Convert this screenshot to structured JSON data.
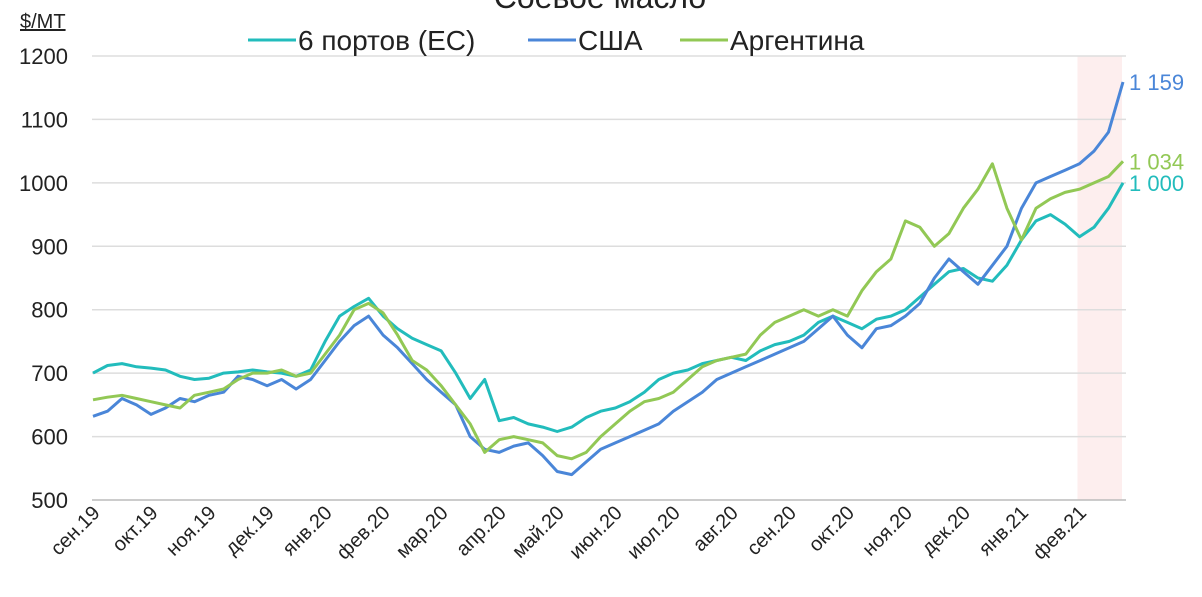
{
  "chart_data": {
    "type": "line",
    "title": "Соевое масло",
    "y_unit": "$/MT",
    "categories": [
      "сен.19",
      null,
      null,
      null,
      "окт.19",
      null,
      null,
      null,
      "ноя.19",
      null,
      null,
      null,
      "дек.19",
      null,
      null,
      null,
      "янв.20",
      null,
      null,
      null,
      "фев.20",
      null,
      null,
      null,
      "мар.20",
      null,
      null,
      null,
      "апр.20",
      null,
      null,
      null,
      "май.20",
      null,
      null,
      null,
      "июн.20",
      null,
      null,
      null,
      "июл.20",
      null,
      null,
      null,
      "авг.20",
      null,
      null,
      null,
      "сен.20",
      null,
      null,
      null,
      "окт.20",
      null,
      null,
      null,
      "ноя.20",
      null,
      null,
      null,
      "дек.20",
      null,
      null,
      null,
      "янв.21",
      null,
      null,
      null,
      "фев.21",
      null,
      null,
      null
    ],
    "series": [
      {
        "name": "6 портов (ЕС)",
        "color": "#22bcbc",
        "end_label": "1 000",
        "values": [
          700,
          712,
          715,
          710,
          708,
          705,
          695,
          690,
          692,
          700,
          702,
          705,
          702,
          700,
          695,
          705,
          750,
          790,
          805,
          818,
          790,
          770,
          755,
          745,
          735,
          700,
          660,
          690,
          625,
          630,
          620,
          615,
          608,
          615,
          630,
          640,
          645,
          655,
          670,
          690,
          700,
          705,
          715,
          720,
          725,
          720,
          735,
          745,
          750,
          760,
          780,
          790,
          780,
          770,
          785,
          790,
          800,
          820,
          840,
          860,
          865,
          850,
          845,
          870,
          910,
          940,
          950,
          935,
          915,
          930,
          960,
          1000
        ]
      },
      {
        "name": "США",
        "color": "#4a86d8",
        "end_label": "1 159",
        "values": [
          632,
          640,
          660,
          650,
          635,
          645,
          660,
          655,
          665,
          670,
          695,
          690,
          680,
          690,
          675,
          690,
          720,
          750,
          775,
          790,
          760,
          740,
          715,
          690,
          670,
          650,
          600,
          580,
          575,
          585,
          590,
          570,
          545,
          540,
          560,
          580,
          590,
          600,
          610,
          620,
          640,
          655,
          670,
          690,
          700,
          710,
          720,
          730,
          740,
          750,
          770,
          790,
          760,
          740,
          770,
          775,
          790,
          810,
          850,
          880,
          860,
          840,
          870,
          900,
          960,
          1000,
          1010,
          1020,
          1030,
          1050,
          1080,
          1159
        ]
      },
      {
        "name": "Аргентина",
        "color": "#92c855",
        "end_label": "1 034",
        "values": [
          658,
          662,
          665,
          660,
          655,
          650,
          645,
          665,
          670,
          675,
          690,
          700,
          700,
          705,
          695,
          700,
          730,
          760,
          800,
          810,
          795,
          760,
          720,
          705,
          680,
          650,
          620,
          575,
          595,
          600,
          595,
          590,
          570,
          565,
          575,
          600,
          620,
          640,
          655,
          660,
          670,
          690,
          710,
          720,
          725,
          730,
          760,
          780,
          790,
          800,
          790,
          800,
          790,
          830,
          860,
          880,
          940,
          930,
          900,
          920,
          960,
          990,
          1030,
          960,
          910,
          960,
          975,
          985,
          990,
          1000,
          1010,
          1034
        ]
      }
    ],
    "ylim": [
      500,
      1200
    ],
    "yticks": [
      500,
      600,
      700,
      800,
      900,
      1000,
      1100,
      1200
    ],
    "grid": true
  }
}
